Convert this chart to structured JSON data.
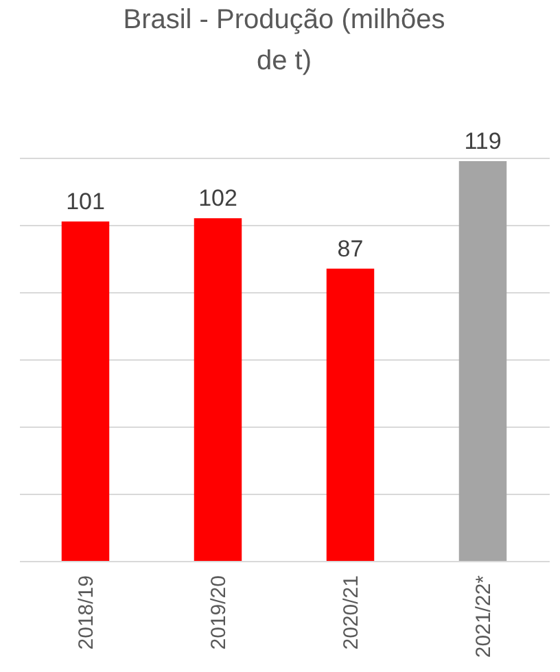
{
  "chart_data": {
    "type": "bar",
    "title": "Brasil - Produção (milhões de t)",
    "categories": [
      "2018/19",
      "2019/20",
      "2020/21",
      "2021/22*"
    ],
    "values": [
      101,
      102,
      87,
      119
    ],
    "colors": [
      "#ff0000",
      "#ff0000",
      "#ff0000",
      "#a5a5a5"
    ],
    "ylim": [
      0,
      120
    ],
    "yticks": [
      {
        "value": 0,
        "label": null
      },
      {
        "value": 20,
        "label": null
      },
      {
        "value": 40,
        "label": null
      },
      {
        "value": 60,
        "label": null
      },
      {
        "value": 80,
        "label": null
      },
      {
        "value": 100,
        "label": null
      },
      {
        "value": 120,
        "label": null
      }
    ],
    "grid": true,
    "tick_labels": "x",
    "data_labels": true
  }
}
